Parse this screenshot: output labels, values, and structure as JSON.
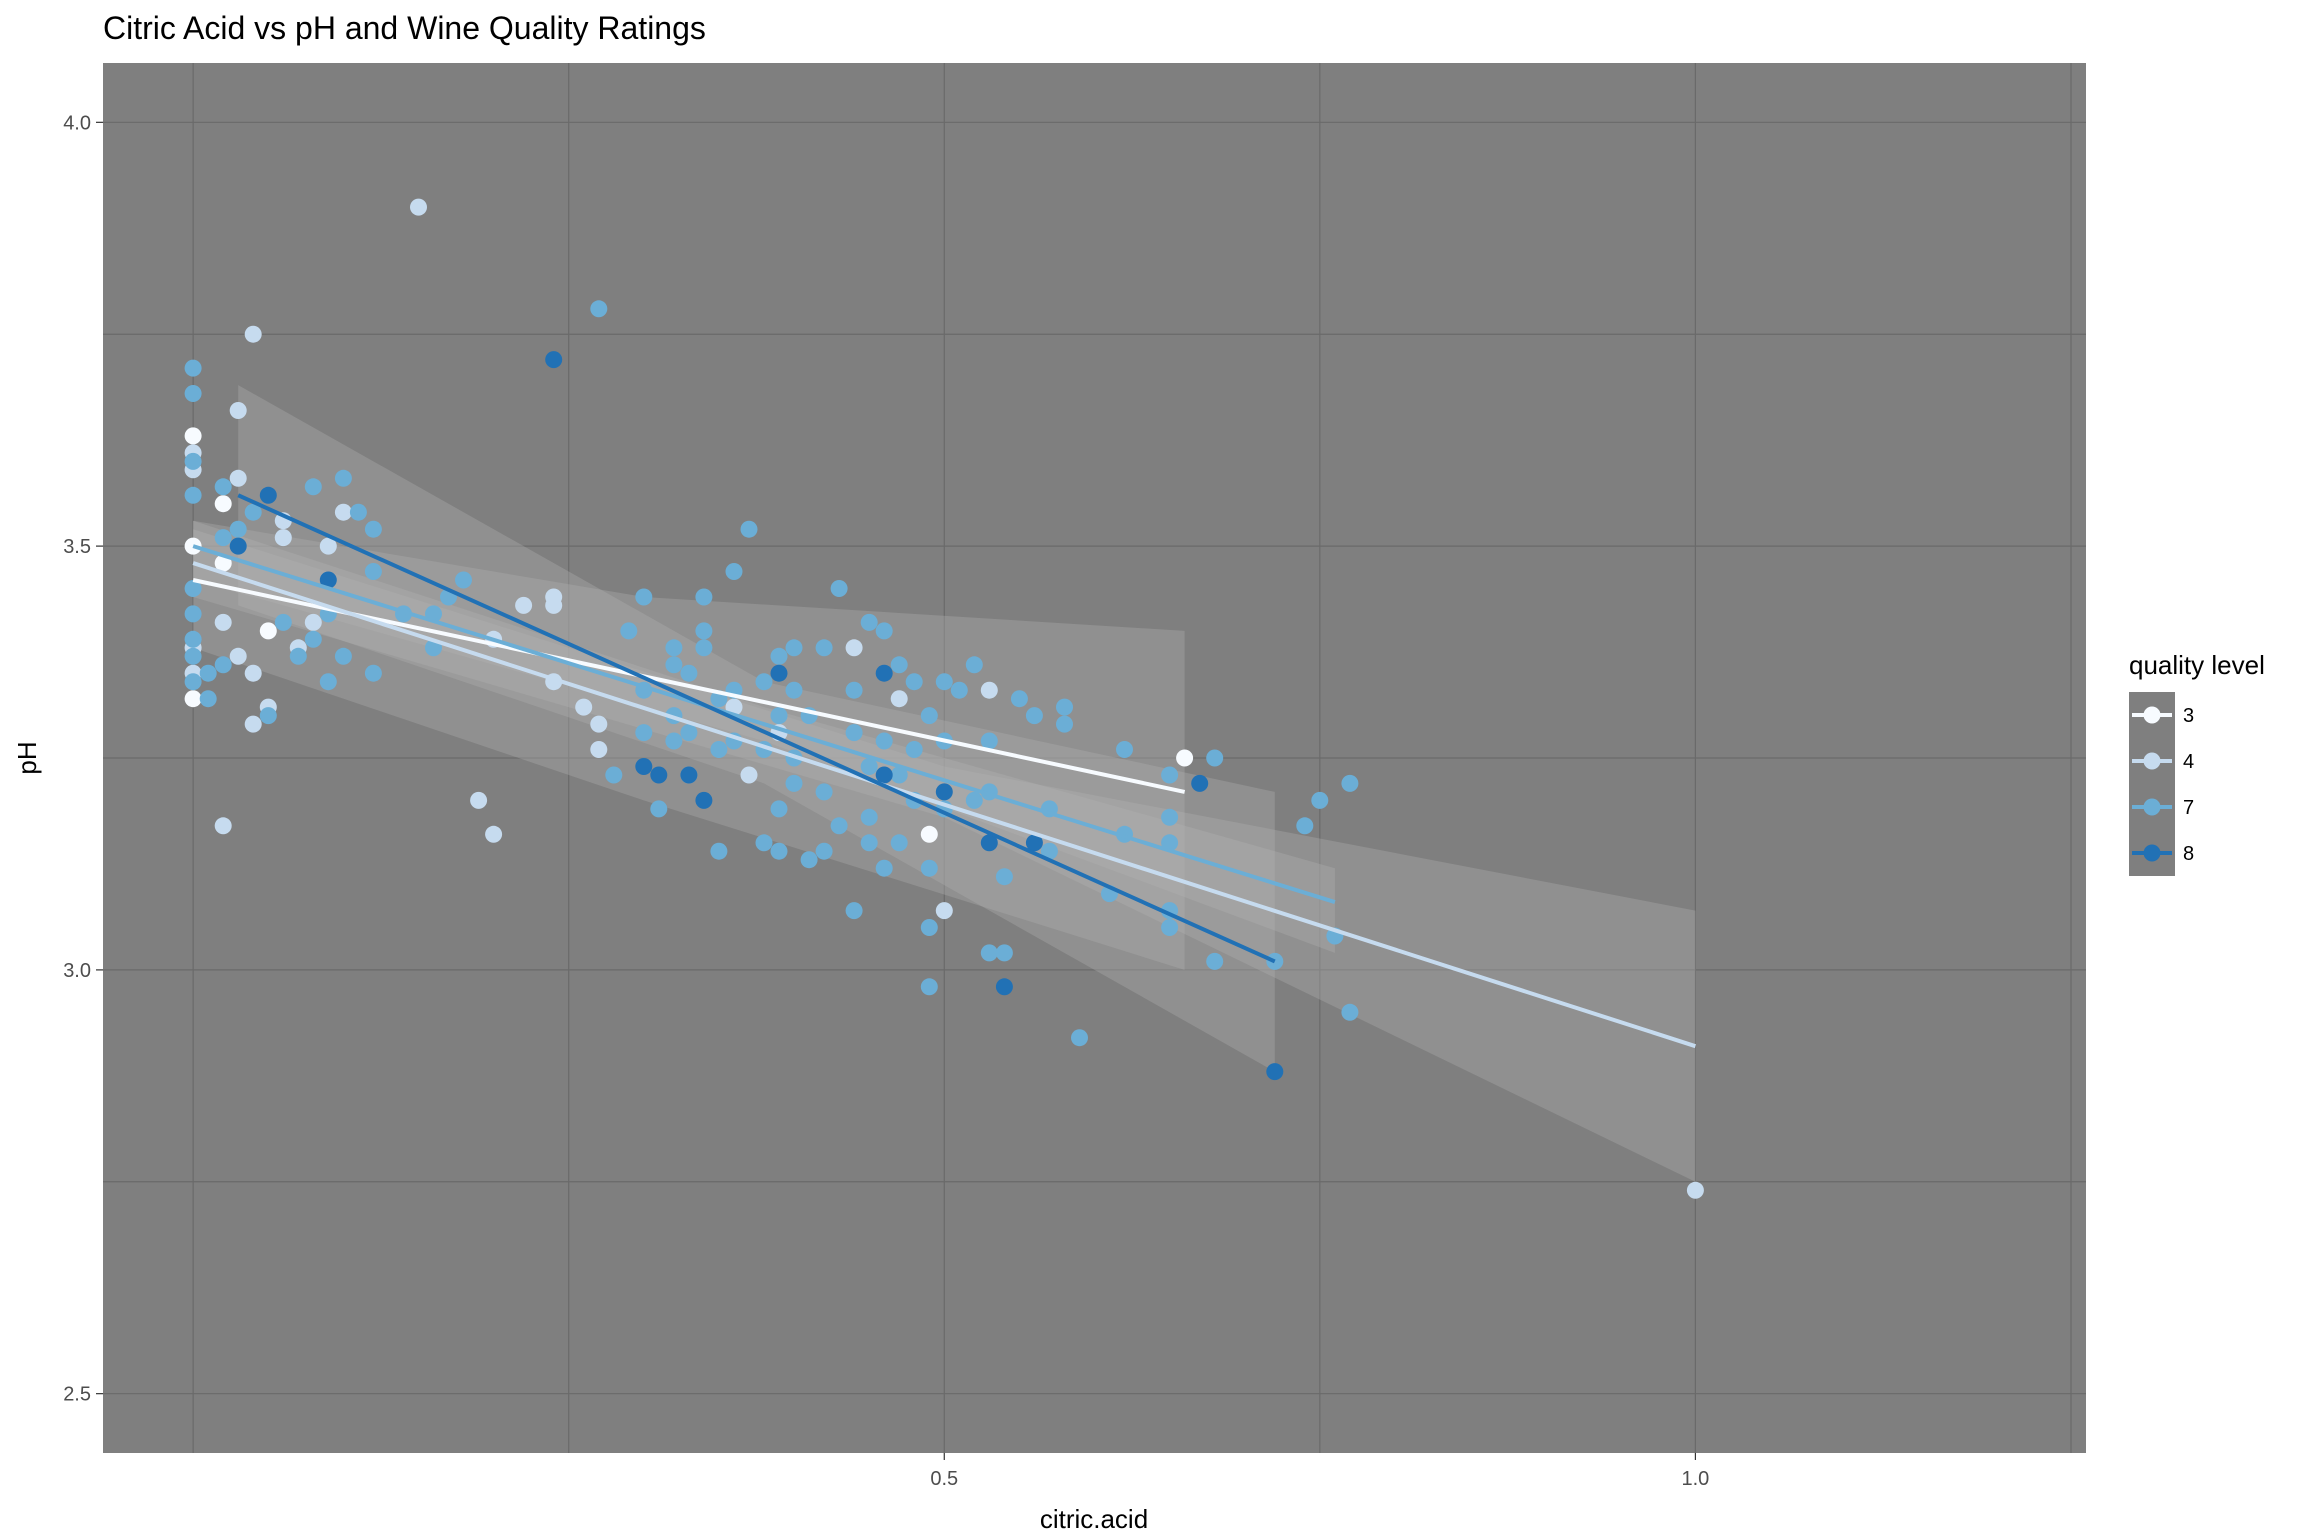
{
  "chart_data": {
    "type": "scatter",
    "title": "Citric Acid vs pH and Wine Quality Ratings",
    "xlabel": "citric.acid",
    "ylabel": "pH",
    "xlim": [
      -0.06,
      1.26
    ],
    "ylim": [
      2.43,
      4.07
    ],
    "x_ticks": [
      0.5,
      1.0
    ],
    "x_tick_labels": [
      "0.5",
      "1.0"
    ],
    "y_ticks": [
      2.5,
      3.0,
      3.5,
      4.0
    ],
    "y_tick_labels": [
      "2.5",
      "3.0",
      "3.5",
      "4.0"
    ],
    "x_gridlines": [
      0,
      0.25,
      0.5,
      0.75,
      1.0,
      1.25
    ],
    "y_gridlines": [
      2.5,
      2.75,
      3.0,
      3.25,
      3.5,
      3.75,
      4.0
    ],
    "grid": true,
    "panel_background": "#7f7f7f",
    "legend": {
      "title": "quality level",
      "position": "right"
    },
    "series": [
      {
        "name": "3",
        "color": "#f7fbff",
        "points": [
          [
            0,
            3.63
          ],
          [
            0,
            3.5
          ],
          [
            0,
            3.32
          ],
          [
            0.02,
            3.55
          ],
          [
            0.02,
            3.48
          ],
          [
            0.05,
            3.4
          ],
          [
            0.49,
            3.16
          ],
          [
            0.66,
            3.25
          ]
        ],
        "fit": {
          "x0": 0.0,
          "x1": 0.66,
          "y0": 3.46,
          "y1": 3.21
        },
        "band": [
          [
            0.0,
            3.53
          ],
          [
            0.3,
            3.44
          ],
          [
            0.66,
            3.4
          ],
          [
            0.66,
            3.0
          ],
          [
            0.3,
            3.2
          ],
          [
            0.0,
            3.38
          ]
        ]
      },
      {
        "name": "4",
        "color": "#c6dbef",
        "points": [
          [
            0,
            3.61
          ],
          [
            0,
            3.59
          ],
          [
            0,
            3.38
          ],
          [
            0,
            3.35
          ],
          [
            0.02,
            3.17
          ],
          [
            0.02,
            3.41
          ],
          [
            0.03,
            3.58
          ],
          [
            0.03,
            3.37
          ],
          [
            0.03,
            3.66
          ],
          [
            0.04,
            3.75
          ],
          [
            0.04,
            3.29
          ],
          [
            0.04,
            3.35
          ],
          [
            0.05,
            3.31
          ],
          [
            0.06,
            3.51
          ],
          [
            0.06,
            3.53
          ],
          [
            0.07,
            3.38
          ],
          [
            0.08,
            3.41
          ],
          [
            0.09,
            3.5
          ],
          [
            0.1,
            3.54
          ],
          [
            0.15,
            3.9
          ],
          [
            0.19,
            3.2
          ],
          [
            0.2,
            3.39
          ],
          [
            0.2,
            3.16
          ],
          [
            0.22,
            3.43
          ],
          [
            0.24,
            3.44
          ],
          [
            0.24,
            3.43
          ],
          [
            0.24,
            3.34
          ],
          [
            0.26,
            3.31
          ],
          [
            0.27,
            3.29
          ],
          [
            0.27,
            3.26
          ],
          [
            0.36,
            3.31
          ],
          [
            0.37,
            3.23
          ],
          [
            0.39,
            3.28
          ],
          [
            0.44,
            3.38
          ],
          [
            0.47,
            3.32
          ],
          [
            0.5,
            3.07
          ],
          [
            0.53,
            3.33
          ],
          [
            1.0,
            2.74
          ]
        ],
        "fit": {
          "x0": 0.0,
          "x1": 1.0,
          "y0": 3.48,
          "y1": 2.91
        },
        "band": [
          [
            0.0,
            3.52
          ],
          [
            0.5,
            3.24
          ],
          [
            1.0,
            3.07
          ],
          [
            1.0,
            2.75
          ],
          [
            0.5,
            3.18
          ],
          [
            0.0,
            3.44
          ]
        ]
      },
      {
        "name": "7",
        "color": "#6baed6",
        "points": [
          [
            0,
            3.71
          ],
          [
            0,
            3.68
          ],
          [
            0,
            3.6
          ],
          [
            0,
            3.56
          ],
          [
            0,
            3.45
          ],
          [
            0,
            3.42
          ],
          [
            0,
            3.39
          ],
          [
            0,
            3.37
          ],
          [
            0,
            3.34
          ],
          [
            0.01,
            3.32
          ],
          [
            0.01,
            3.35
          ],
          [
            0.02,
            3.57
          ],
          [
            0.02,
            3.51
          ],
          [
            0.02,
            3.36
          ],
          [
            0.03,
            3.52
          ],
          [
            0.04,
            3.54
          ],
          [
            0.05,
            3.3
          ],
          [
            0.06,
            3.41
          ],
          [
            0.07,
            3.37
          ],
          [
            0.08,
            3.57
          ],
          [
            0.08,
            3.39
          ],
          [
            0.09,
            3.42
          ],
          [
            0.09,
            3.34
          ],
          [
            0.1,
            3.58
          ],
          [
            0.1,
            3.37
          ],
          [
            0.11,
            3.54
          ],
          [
            0.12,
            3.52
          ],
          [
            0.12,
            3.47
          ],
          [
            0.12,
            3.35
          ],
          [
            0.14,
            3.42
          ],
          [
            0.16,
            3.42
          ],
          [
            0.16,
            3.38
          ],
          [
            0.17,
            3.44
          ],
          [
            0.18,
            3.46
          ],
          [
            0.27,
            3.78
          ],
          [
            0.28,
            3.23
          ],
          [
            0.29,
            3.4
          ],
          [
            0.3,
            3.44
          ],
          [
            0.3,
            3.33
          ],
          [
            0.3,
            3.28
          ],
          [
            0.31,
            3.19
          ],
          [
            0.32,
            3.38
          ],
          [
            0.32,
            3.36
          ],
          [
            0.32,
            3.3
          ],
          [
            0.32,
            3.27
          ],
          [
            0.33,
            3.35
          ],
          [
            0.33,
            3.28
          ],
          [
            0.33,
            3.23
          ],
          [
            0.34,
            3.44
          ],
          [
            0.34,
            3.4
          ],
          [
            0.34,
            3.38
          ],
          [
            0.35,
            3.32
          ],
          [
            0.35,
            3.26
          ],
          [
            0.35,
            3.14
          ],
          [
            0.36,
            3.47
          ],
          [
            0.36,
            3.33
          ],
          [
            0.36,
            3.27
          ],
          [
            0.37,
            3.52
          ],
          [
            0.38,
            3.34
          ],
          [
            0.38,
            3.26
          ],
          [
            0.38,
            3.15
          ],
          [
            0.39,
            3.37
          ],
          [
            0.39,
            3.3
          ],
          [
            0.39,
            3.19
          ],
          [
            0.39,
            3.14
          ],
          [
            0.4,
            3.38
          ],
          [
            0.4,
            3.33
          ],
          [
            0.4,
            3.25
          ],
          [
            0.4,
            3.22
          ],
          [
            0.41,
            3.3
          ],
          [
            0.41,
            3.13
          ],
          [
            0.42,
            3.38
          ],
          [
            0.42,
            3.21
          ],
          [
            0.42,
            3.14
          ],
          [
            0.43,
            3.45
          ],
          [
            0.43,
            3.17
          ],
          [
            0.44,
            3.33
          ],
          [
            0.44,
            3.28
          ],
          [
            0.44,
            3.07
          ],
          [
            0.45,
            3.41
          ],
          [
            0.45,
            3.24
          ],
          [
            0.45,
            3.18
          ],
          [
            0.45,
            3.15
          ],
          [
            0.46,
            3.4
          ],
          [
            0.46,
            3.27
          ],
          [
            0.46,
            3.12
          ],
          [
            0.47,
            3.36
          ],
          [
            0.47,
            3.23
          ],
          [
            0.47,
            3.15
          ],
          [
            0.48,
            3.34
          ],
          [
            0.48,
            3.26
          ],
          [
            0.48,
            3.2
          ],
          [
            0.49,
            3.3
          ],
          [
            0.49,
            3.12
          ],
          [
            0.49,
            3.05
          ],
          [
            0.49,
            2.98
          ],
          [
            0.5,
            3.34
          ],
          [
            0.5,
            3.27
          ],
          [
            0.5,
            3.19
          ],
          [
            0.51,
            3.33
          ],
          [
            0.52,
            3.36
          ],
          [
            0.52,
            3.2
          ],
          [
            0.53,
            3.27
          ],
          [
            0.53,
            3.21
          ],
          [
            0.53,
            3.02
          ],
          [
            0.54,
            3.11
          ],
          [
            0.54,
            3.02
          ],
          [
            0.55,
            3.32
          ],
          [
            0.56,
            3.3
          ],
          [
            0.57,
            3.19
          ],
          [
            0.57,
            3.14
          ],
          [
            0.58,
            3.31
          ],
          [
            0.58,
            3.29
          ],
          [
            0.59,
            2.92
          ],
          [
            0.61,
            3.09
          ],
          [
            0.62,
            3.26
          ],
          [
            0.62,
            3.16
          ],
          [
            0.65,
            3.23
          ],
          [
            0.65,
            3.18
          ],
          [
            0.65,
            3.15
          ],
          [
            0.65,
            3.07
          ],
          [
            0.65,
            3.05
          ],
          [
            0.68,
            3.25
          ],
          [
            0.68,
            3.01
          ],
          [
            0.72,
            3.01
          ],
          [
            0.74,
            3.17
          ],
          [
            0.75,
            3.2
          ],
          [
            0.76,
            3.04
          ],
          [
            0.77,
            3.22
          ],
          [
            0.77,
            2.95
          ]
        ],
        "fit": {
          "x0": 0.0,
          "x1": 0.76,
          "y0": 3.5,
          "y1": 3.08
        },
        "band": [
          [
            0.0,
            3.53
          ],
          [
            0.38,
            3.31
          ],
          [
            0.76,
            3.12
          ],
          [
            0.76,
            3.02
          ],
          [
            0.38,
            3.27
          ],
          [
            0.0,
            3.46
          ]
        ]
      },
      {
        "name": "8",
        "color": "#2171b5",
        "points": [
          [
            0.03,
            3.5
          ],
          [
            0.05,
            3.56
          ],
          [
            0.09,
            3.46
          ],
          [
            0.24,
            3.72
          ],
          [
            0.3,
            3.24
          ],
          [
            0.31,
            3.23
          ],
          [
            0.33,
            3.23
          ],
          [
            0.34,
            3.2
          ],
          [
            0.39,
            3.35
          ],
          [
            0.46,
            3.23
          ],
          [
            0.46,
            3.35
          ],
          [
            0.5,
            3.21
          ],
          [
            0.53,
            3.15
          ],
          [
            0.54,
            2.98
          ],
          [
            0.56,
            3.15
          ],
          [
            0.67,
            3.22
          ],
          [
            0.72,
            2.88
          ]
        ],
        "fit": {
          "x0": 0.03,
          "x1": 0.72,
          "y0": 3.56,
          "y1": 3.01
        },
        "band": [
          [
            0.03,
            3.69
          ],
          [
            0.38,
            3.34
          ],
          [
            0.72,
            3.21
          ],
          [
            0.72,
            2.88
          ],
          [
            0.38,
            3.22
          ],
          [
            0.03,
            3.43
          ]
        ]
      }
    ]
  }
}
